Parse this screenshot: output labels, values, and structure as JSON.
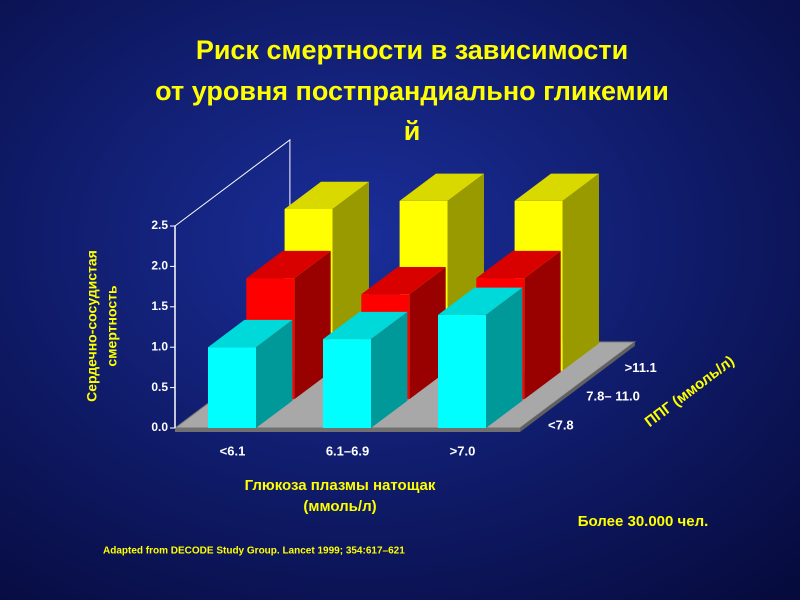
{
  "chart_data": {
    "type": "bar3d",
    "title": [
      "Риск смертности в зависимости",
      "от уровня постпрандиально гликемии",
      "й"
    ],
    "y_label": [
      "Сердечно-сосудистая",
      "смертность"
    ],
    "x_label": [
      "Глюкоза плазмы натощак",
      "(ммоль/л)"
    ],
    "z_label": "ППГ (ммоль/л)",
    "categories": [
      "<6.1",
      "6.1–6.9",
      ">7.0"
    ],
    "series": [
      {
        "name": "<7.8",
        "color": "#00ffff",
        "values": [
          1.0,
          1.1,
          1.4
        ]
      },
      {
        "name": "7.8– 11.0",
        "color": "#ff0000",
        "values": [
          1.5,
          1.3,
          1.5
        ]
      },
      {
        "name": ">11.1",
        "color": "#ffff00",
        "values": [
          2.0,
          2.1,
          2.1
        ]
      }
    ],
    "ylim": [
      0,
      2.5
    ],
    "yticks": [
      {
        "value": 0,
        "label": "0.0"
      },
      {
        "value": 0.5,
        "label": "0.5"
      },
      {
        "value": 1,
        "label": "1.0"
      },
      {
        "value": 1.5,
        "label": "1.5"
      },
      {
        "value": 2,
        "label": "2.0"
      },
      {
        "value": 2.5,
        "label": "2.5"
      }
    ],
    "annotation": "Более 30.000 чел.",
    "source": "Adapted from DECODE Study Group. Lancet 1999; 354:617–621"
  }
}
